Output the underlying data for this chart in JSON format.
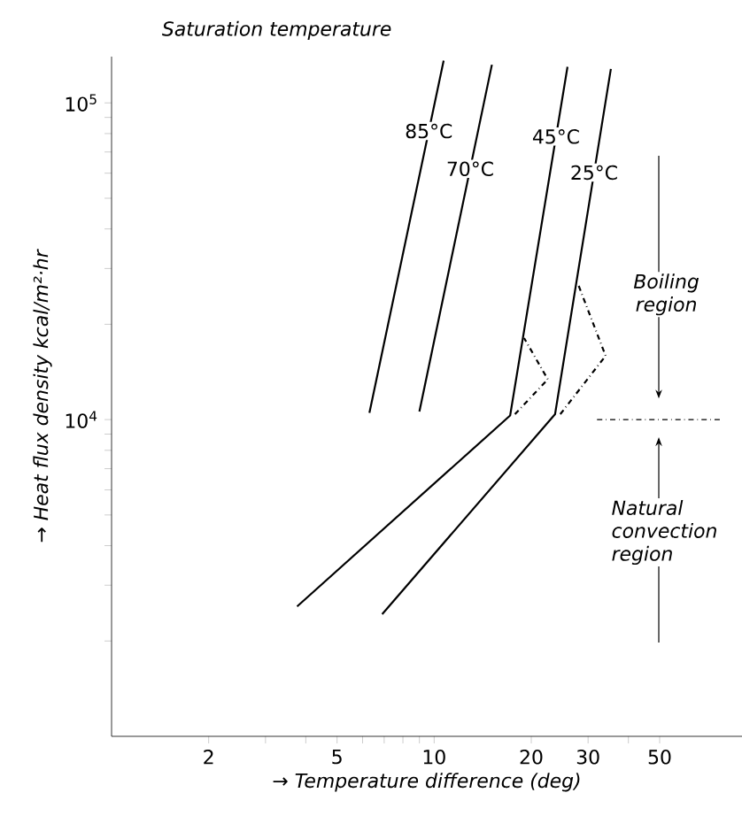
{
  "chart_data": {
    "type": "line",
    "title": "Saturation temperature",
    "xlabel": "→ Temperature difference (deg)",
    "ylabel": "→ Heat flux density kcal/m²·hr",
    "log": "xy",
    "xlim": [
      1,
      90
    ],
    "ylim": [
      1000,
      140000
    ],
    "xticks": [
      2,
      {
        "value": 3,
        "label": null
      },
      {
        "value": 4,
        "label": null
      },
      5,
      {
        "value": 6,
        "label": null
      },
      {
        "value": 7,
        "label": null
      },
      {
        "value": 8,
        "label": null
      },
      {
        "value": 9,
        "label": null
      },
      10,
      20,
      30,
      {
        "value": 40,
        "label": null
      },
      50
    ],
    "yticks": [
      {
        "value": 2000,
        "label": null
      },
      {
        "value": 3000,
        "label": null
      },
      {
        "value": 4000,
        "label": null
      },
      {
        "value": 5000,
        "label": null
      },
      {
        "value": 6000,
        "label": null
      },
      {
        "value": 7000,
        "label": null
      },
      {
        "value": 8000,
        "label": null
      },
      {
        "value": 9000,
        "label": null
      },
      {
        "value": 10000,
        "label": "10$^{4}$"
      },
      {
        "value": 20000,
        "label": null
      },
      {
        "value": 30000,
        "label": null
      },
      {
        "value": 40000,
        "label": null
      },
      {
        "value": 50000,
        "label": null
      },
      {
        "value": 60000,
        "label": null
      },
      {
        "value": 70000,
        "label": null
      },
      {
        "value": 80000,
        "label": null
      },
      {
        "value": 90000,
        "label": null
      },
      {
        "value": 100000,
        "label": "10$^{5}$"
      }
    ],
    "series": [
      {
        "name": "85°C",
        "color": "#000000",
        "line_style": "solid",
        "x": [
          6.3,
          10.7
        ],
        "values": [
          10500,
          136000
        ]
      },
      {
        "name": "70°C",
        "color": "#000000",
        "line_style": "solid",
        "x": [
          9.0,
          15.1
        ],
        "values": [
          10600,
          132000
        ]
      },
      {
        "name": "45°C",
        "color": "#000000",
        "line_style": "solid",
        "x": [
          3.76,
          17.2,
          25.9
        ],
        "values": [
          2570,
          10300,
          130000
        ]
      },
      {
        "name": "25°C",
        "color": "#000000",
        "line_style": "solid",
        "x": [
          6.9,
          23.7,
          35.3
        ],
        "values": [
          2430,
          10400,
          128000
        ]
      },
      {
        "color": "#000000",
        "line_style": "dashed",
        "x": [
          17.8,
          22.5,
          19.0
        ],
        "values": [
          10400,
          13400,
          18100
        ]
      },
      {
        "color": "#000000",
        "line_style": "dashed",
        "x": [
          24.6,
          34.0,
          28.0
        ],
        "values": [
          10400,
          15900,
          26600
        ]
      }
    ],
    "ref_lines": [
      {
        "axis": "y",
        "value": 10000,
        "line_style": "dashed"
      }
    ],
    "annotations": [
      "Boiling region",
      "Natural convection region"
    ]
  }
}
